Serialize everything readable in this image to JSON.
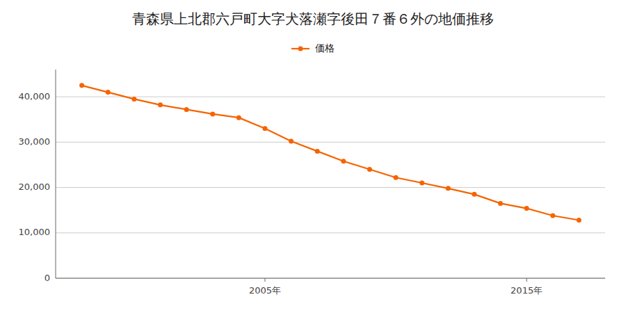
{
  "chart_data": {
    "type": "line",
    "title": "青森県上北郡六戸町大字犬落瀬字後田７番６外の地価推移",
    "x": [
      1998,
      1999,
      2000,
      2001,
      2002,
      2003,
      2004,
      2005,
      2006,
      2007,
      2008,
      2009,
      2010,
      2011,
      2012,
      2013,
      2014,
      2015,
      2016,
      2017
    ],
    "series": [
      {
        "name": "価格",
        "color": "#f56400",
        "marker": "circle",
        "values": [
          42500,
          41000,
          39500,
          38200,
          37200,
          36200,
          35400,
          33000,
          30200,
          28000,
          25800,
          24000,
          22200,
          21000,
          19800,
          18500,
          16500,
          15400,
          13800,
          12800
        ]
      }
    ],
    "xlim": [
      1997,
      2018
    ],
    "xticks": [
      {
        "value": 2005,
        "label": "2005年"
      },
      {
        "value": 2015,
        "label": "2015年"
      }
    ],
    "ylim": [
      0,
      46000
    ],
    "yticks": [
      0,
      {
        "value": 10000,
        "label": "10,000"
      },
      {
        "value": 20000,
        "label": "20,000"
      },
      {
        "value": 30000,
        "label": "30,000"
      },
      {
        "value": 40000,
        "label": "40,000"
      }
    ],
    "grid": true,
    "legend": "top"
  }
}
